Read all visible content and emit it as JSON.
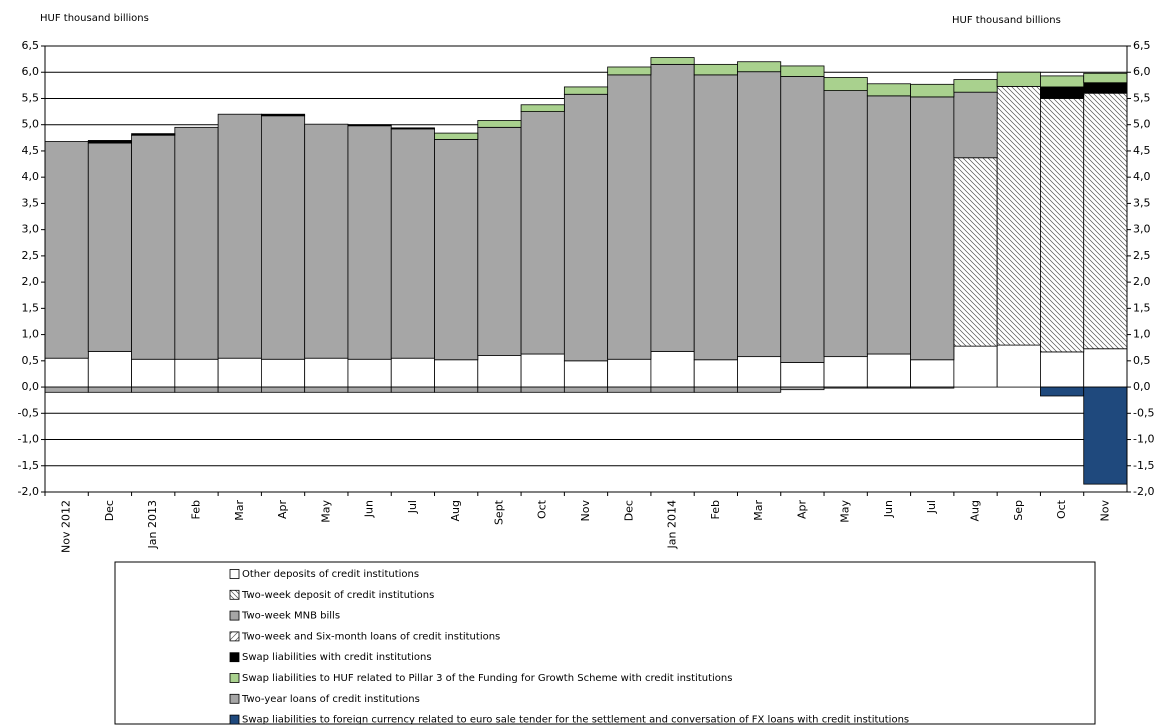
{
  "chart_data": {
    "type": "stacked-bar",
    "ylabel": "HUF thousand billions",
    "y2label": "HUF thousand billions",
    "categories": [
      "Nov 2012",
      "Dec",
      "Jan 2013",
      "Feb",
      "Mar",
      "Apr",
      "May",
      "Jun",
      "Jul",
      "Aug",
      "Sept",
      "Oct",
      "Nov",
      "Dec",
      "Jan 2014",
      "Feb",
      "Mar",
      "Apr",
      "May",
      "Jun",
      "Jul",
      "Aug",
      "Sep",
      "Oct",
      "Nov"
    ],
    "ylim": [
      -2.0,
      6.5
    ],
    "yticks": [
      {
        "value": -2.0,
        "label": "-2,0"
      },
      {
        "value": -1.5,
        "label": "-1,5"
      },
      {
        "value": -1.0,
        "label": "-1,0"
      },
      {
        "value": -0.5,
        "label": "-0,5"
      },
      {
        "value": 0.0,
        "label": "0,0"
      },
      {
        "value": 0.5,
        "label": "0,5"
      },
      {
        "value": 1.0,
        "label": "1,0"
      },
      {
        "value": 1.5,
        "label": "1,5"
      },
      {
        "value": 2.0,
        "label": "2,0"
      },
      {
        "value": 2.5,
        "label": "2,5"
      },
      {
        "value": 3.0,
        "label": "3,0"
      },
      {
        "value": 3.5,
        "label": "3,5"
      },
      {
        "value": 4.0,
        "label": "4,0"
      },
      {
        "value": 4.5,
        "label": "4,5"
      },
      {
        "value": 5.0,
        "label": "5,0"
      },
      {
        "value": 5.5,
        "label": "5,5"
      },
      {
        "value": 6.0,
        "label": "6,0"
      },
      {
        "value": 6.5,
        "label": "6,5"
      }
    ],
    "y2lim": [
      -2.0,
      6.5
    ],
    "y2ticks": [
      {
        "value": -2.0,
        "label": "-2,0"
      },
      {
        "value": -1.5,
        "label": "-1,5"
      },
      {
        "value": -1.0,
        "label": "-1,0"
      },
      {
        "value": -0.5,
        "label": "-0,5"
      },
      {
        "value": 0.0,
        "label": "0,0"
      },
      {
        "value": 0.5,
        "label": "0,5"
      },
      {
        "value": 1.0,
        "label": "1,0"
      },
      {
        "value": 1.5,
        "label": "1,5"
      },
      {
        "value": 2.0,
        "label": "2,0"
      },
      {
        "value": 2.5,
        "label": "2,5"
      },
      {
        "value": 3.0,
        "label": "3,0"
      },
      {
        "value": 3.5,
        "label": "3,5"
      },
      {
        "value": 4.0,
        "label": "4,0"
      },
      {
        "value": 4.5,
        "label": "4,5"
      },
      {
        "value": 5.0,
        "label": "5,0"
      },
      {
        "value": 5.5,
        "label": "5,5"
      },
      {
        "value": 6.0,
        "label": "6,0"
      },
      {
        "value": 6.5,
        "label": "6,5"
      }
    ],
    "grid": true,
    "series": [
      {
        "name": "Other deposits of credit institutions",
        "color": "#ffffff",
        "values": [
          0.55,
          0.68,
          0.53,
          0.53,
          0.55,
          0.53,
          0.55,
          0.53,
          0.55,
          0.52,
          0.6,
          0.63,
          0.5,
          0.53,
          0.68,
          0.52,
          0.58,
          0.47,
          0.58,
          0.63,
          0.52,
          0.78,
          0.8,
          0.67,
          0.73
        ]
      },
      {
        "name": "Two-week deposit of credit institutions",
        "color": "#ffffff",
        "pattern": "dense-hatch",
        "values": [
          0,
          0,
          0,
          0,
          0,
          0,
          0,
          0,
          0,
          0,
          0,
          0,
          0,
          0,
          0,
          0,
          0,
          0,
          0,
          0,
          0,
          3.59,
          4.93,
          4.83,
          4.87
        ]
      },
      {
        "name": "Two-week MNB bills",
        "color": "#a6a6a6",
        "values": [
          4.13,
          3.97,
          4.27,
          4.42,
          4.65,
          4.64,
          4.46,
          4.45,
          4.37,
          4.2,
          4.35,
          4.62,
          5.08,
          5.42,
          5.47,
          5.43,
          5.43,
          5.45,
          5.07,
          4.92,
          5.01,
          1.25,
          0,
          0,
          0
        ]
      },
      {
        "name": "Two-week and Six-month loans of credit institutions",
        "color": "#ffffff",
        "pattern": "light-hatch",
        "values": [
          0,
          0,
          0,
          0,
          0,
          0,
          0,
          0,
          0,
          0,
          0,
          0,
          0,
          0,
          0,
          0,
          0,
          0,
          0,
          0,
          0,
          0,
          0,
          0,
          0
        ]
      },
      {
        "name": "Swap liabilities with credit institutions",
        "color": "#000000",
        "values": [
          0,
          0.05,
          0.03,
          0,
          0,
          0.03,
          0,
          0.02,
          0.02,
          0,
          0,
          0,
          0,
          0,
          0,
          0,
          0,
          0,
          0,
          0,
          0,
          0,
          0,
          0.22,
          0.2
        ]
      },
      {
        "name": "Swap liabilities to HUF related to Pillar 3 of the Funding for Growth Scheme with credit institutions",
        "color": "#a9d18e",
        "values": [
          0,
          0,
          0,
          0,
          0,
          0,
          0,
          0,
          0,
          0.12,
          0.13,
          0.13,
          0.14,
          0.15,
          0.13,
          0.2,
          0.19,
          0.2,
          0.25,
          0.23,
          0.24,
          0.24,
          0.27,
          0.21,
          0.18
        ]
      },
      {
        "name": "Two-year loans of credit institutions",
        "color": "#a6a6a6",
        "values": [
          -0.1,
          -0.1,
          -0.1,
          -0.1,
          -0.1,
          -0.1,
          -0.1,
          -0.1,
          -0.1,
          -0.1,
          -0.1,
          -0.1,
          -0.1,
          -0.1,
          -0.1,
          -0.1,
          -0.1,
          -0.05,
          -0.02,
          -0.02,
          -0.02,
          0,
          0,
          0,
          0
        ]
      },
      {
        "name": "Swap liabilities to foreign currency related to euro sale tender for the settlement and conversation of FX loans with credit institutions",
        "color": "#1f497d",
        "values": [
          0,
          0,
          0,
          0,
          0,
          0,
          0,
          0,
          0,
          0,
          0,
          0,
          0,
          0,
          0,
          0,
          0,
          0,
          0,
          0,
          0,
          0,
          0,
          -0.17,
          -1.85
        ]
      }
    ]
  }
}
